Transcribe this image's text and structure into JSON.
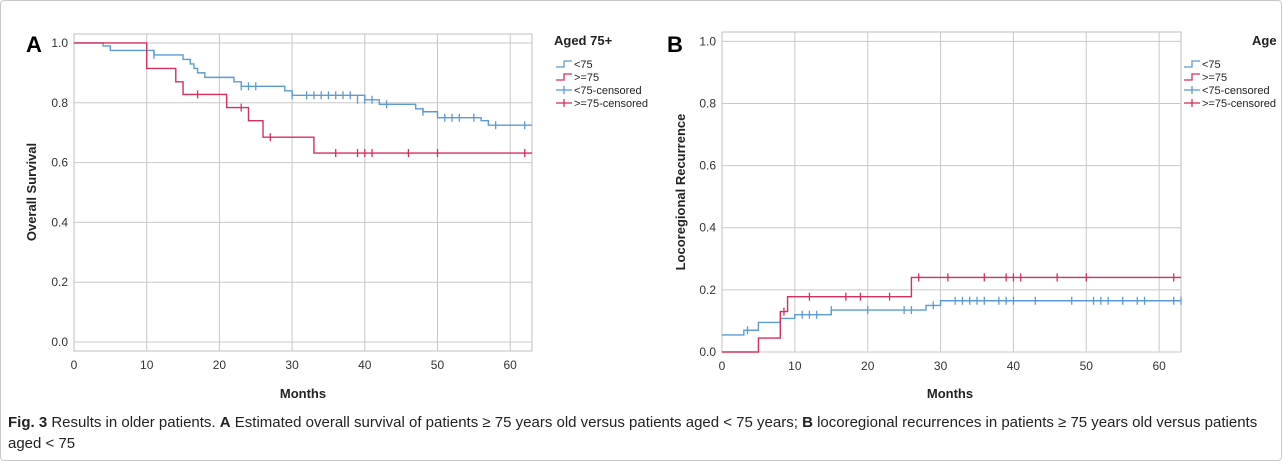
{
  "figure": {
    "caption_label": "Fig. 3",
    "caption_text": " Results in older patients. ",
    "caption_a_label": "A",
    "caption_a_text": " Estimated overall survival of patients ≥ 75 years old versus patients aged < 75 years; ",
    "caption_b_label": "B",
    "caption_b_text": " locoregional recurrences in patients ≥ 75 years old versus patients aged < 75"
  },
  "chart_data": [
    {
      "type": "line",
      "panel_label": "A",
      "xlabel": "Months",
      "ylabel": "Overall Survival",
      "xlim": [
        0,
        63
      ],
      "ylim": [
        -0.03,
        1.03
      ],
      "xticks": [
        0,
        10,
        20,
        30,
        40,
        50,
        60
      ],
      "yticks": [
        "0.0",
        "0.2",
        "0.4",
        "0.6",
        "0.8",
        "1.0"
      ],
      "grid": true,
      "legend_title": "Aged 75+",
      "legend_placement": "right",
      "legend": [
        "<75",
        ">=75",
        "<75-censored",
        ">=75-censored"
      ],
      "colors": {
        "lt75": "#5b9bd5",
        "ge75": "#d62f5c"
      },
      "series": [
        {
          "name": "<75",
          "step_points": [
            [
              0,
              1.0
            ],
            [
              4,
              0.99
            ],
            [
              5,
              0.975
            ],
            [
              10,
              0.975
            ],
            [
              11,
              0.96
            ],
            [
              14,
              0.96
            ],
            [
              15,
              0.945
            ],
            [
              16,
              0.93
            ],
            [
              16.5,
              0.915
            ],
            [
              17,
              0.9
            ],
            [
              18,
              0.885
            ],
            [
              22,
              0.87
            ],
            [
              23,
              0.855
            ],
            [
              29,
              0.84
            ],
            [
              30,
              0.825
            ],
            [
              40,
              0.81
            ],
            [
              41,
              0.81
            ],
            [
              42,
              0.795
            ],
            [
              47,
              0.78
            ],
            [
              48,
              0.77
            ],
            [
              49,
              0.77
            ],
            [
              50,
              0.75
            ],
            [
              56,
              0.74
            ],
            [
              57,
              0.725
            ],
            [
              63,
              0.725
            ]
          ],
          "censored": [
            [
              11,
              0.96
            ],
            [
              23,
              0.855
            ],
            [
              24,
              0.855
            ],
            [
              25,
              0.855
            ],
            [
              30,
              0.825
            ],
            [
              32,
              0.825
            ],
            [
              33,
              0.825
            ],
            [
              34,
              0.825
            ],
            [
              35,
              0.825
            ],
            [
              36,
              0.825
            ],
            [
              37,
              0.825
            ],
            [
              38,
              0.825
            ],
            [
              39,
              0.81
            ],
            [
              40,
              0.81
            ],
            [
              41,
              0.81
            ],
            [
              43,
              0.795
            ],
            [
              48,
              0.77
            ],
            [
              51,
              0.75
            ],
            [
              52,
              0.75
            ],
            [
              53,
              0.75
            ],
            [
              55,
              0.75
            ],
            [
              58,
              0.725
            ],
            [
              62,
              0.725
            ]
          ]
        },
        {
          "name": ">=75",
          "step_points": [
            [
              0,
              1.0
            ],
            [
              10,
              1.0
            ],
            [
              10,
              0.915
            ],
            [
              14,
              0.915
            ],
            [
              14,
              0.87
            ],
            [
              15,
              0.87
            ],
            [
              15,
              0.828
            ],
            [
              21,
              0.828
            ],
            [
              21,
              0.784
            ],
            [
              24,
              0.784
            ],
            [
              24,
              0.74
            ],
            [
              26,
              0.74
            ],
            [
              26,
              0.685
            ],
            [
              33,
              0.685
            ],
            [
              33,
              0.632
            ],
            [
              63,
              0.632
            ]
          ],
          "censored": [
            [
              17,
              0.828
            ],
            [
              23,
              0.784
            ],
            [
              27,
              0.685
            ],
            [
              36,
              0.632
            ],
            [
              39,
              0.632
            ],
            [
              40,
              0.632
            ],
            [
              41,
              0.632
            ],
            [
              46,
              0.632
            ],
            [
              50,
              0.632
            ],
            [
              62,
              0.632
            ]
          ]
        }
      ]
    },
    {
      "type": "line",
      "panel_label": "B",
      "xlabel": "Months",
      "ylabel": "Locoregional Recurrence",
      "xlim": [
        0,
        63
      ],
      "ylim": [
        0,
        1.03
      ],
      "xticks": [
        0,
        10,
        20,
        30,
        40,
        50,
        60
      ],
      "yticks": [
        "0.0",
        "0.2",
        "0.4",
        "0.6",
        "0.8",
        "1.0"
      ],
      "grid": true,
      "legend_title": "Age",
      "legend_placement": "right",
      "legend": [
        "<75",
        ">=75",
        "<75-censored",
        ">=75-censored"
      ],
      "colors": {
        "lt75": "#5b9bd5",
        "ge75": "#d62f5c"
      },
      "series": [
        {
          "name": "<75",
          "step_points": [
            [
              0,
              0.055
            ],
            [
              3,
              0.055
            ],
            [
              3,
              0.07
            ],
            [
              5,
              0.07
            ],
            [
              5,
              0.095
            ],
            [
              8,
              0.095
            ],
            [
              8,
              0.108
            ],
            [
              10,
              0.108
            ],
            [
              10,
              0.12
            ],
            [
              15,
              0.12
            ],
            [
              15,
              0.135
            ],
            [
              28,
              0.135
            ],
            [
              28,
              0.15
            ],
            [
              30,
              0.15
            ],
            [
              30,
              0.165
            ],
            [
              63,
              0.165
            ]
          ],
          "censored": [
            [
              3.5,
              0.07
            ],
            [
              11,
              0.12
            ],
            [
              12,
              0.12
            ],
            [
              13,
              0.12
            ],
            [
              15,
              0.135
            ],
            [
              20,
              0.135
            ],
            [
              25,
              0.135
            ],
            [
              26,
              0.135
            ],
            [
              29,
              0.15
            ],
            [
              32,
              0.165
            ],
            [
              33,
              0.165
            ],
            [
              34,
              0.165
            ],
            [
              35,
              0.165
            ],
            [
              36,
              0.165
            ],
            [
              38,
              0.165
            ],
            [
              39,
              0.165
            ],
            [
              40,
              0.165
            ],
            [
              43,
              0.165
            ],
            [
              48,
              0.165
            ],
            [
              51,
              0.165
            ],
            [
              52,
              0.165
            ],
            [
              53,
              0.165
            ],
            [
              55,
              0.165
            ],
            [
              57,
              0.165
            ],
            [
              58,
              0.165
            ],
            [
              62,
              0.165
            ],
            [
              63,
              0.165
            ]
          ]
        },
        {
          "name": ">=75",
          "step_points": [
            [
              0,
              0.0
            ],
            [
              5,
              0.0
            ],
            [
              5,
              0.045
            ],
            [
              8,
              0.045
            ],
            [
              8,
              0.13
            ],
            [
              9,
              0.13
            ],
            [
              9,
              0.178
            ],
            [
              26,
              0.178
            ],
            [
              26,
              0.24
            ],
            [
              63,
              0.24
            ]
          ],
          "censored": [
            [
              8.5,
              0.13
            ],
            [
              12,
              0.178
            ],
            [
              17,
              0.178
            ],
            [
              19,
              0.178
            ],
            [
              23,
              0.178
            ],
            [
              27,
              0.24
            ],
            [
              31,
              0.24
            ],
            [
              36,
              0.24
            ],
            [
              39,
              0.24
            ],
            [
              40,
              0.24
            ],
            [
              41,
              0.24
            ],
            [
              46,
              0.24
            ],
            [
              50,
              0.24
            ],
            [
              62,
              0.24
            ]
          ]
        }
      ]
    }
  ]
}
